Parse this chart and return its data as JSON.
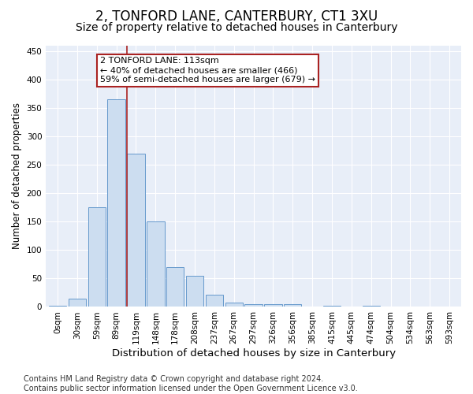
{
  "title1": "2, TONFORD LANE, CANTERBURY, CT1 3XU",
  "title2": "Size of property relative to detached houses in Canterbury",
  "xlabel": "Distribution of detached houses by size in Canterbury",
  "ylabel": "Number of detached properties",
  "bar_labels": [
    "0sqm",
    "30sqm",
    "59sqm",
    "89sqm",
    "119sqm",
    "148sqm",
    "178sqm",
    "208sqm",
    "237sqm",
    "267sqm",
    "297sqm",
    "326sqm",
    "356sqm",
    "385sqm",
    "415sqm",
    "445sqm",
    "474sqm",
    "504sqm",
    "534sqm",
    "563sqm",
    "593sqm"
  ],
  "bar_values": [
    2,
    15,
    175,
    365,
    270,
    150,
    70,
    55,
    22,
    8,
    5,
    5,
    5,
    0,
    2,
    0,
    2,
    0,
    0,
    0,
    0
  ],
  "bar_color": "#ccddf0",
  "bar_edge_color": "#6699cc",
  "vline_x": 3.55,
  "vline_color": "#aa2222",
  "annotation_text": "2 TONFORD LANE: 113sqm\n← 40% of detached houses are smaller (466)\n59% of semi-detached houses are larger (679) →",
  "annotation_box_color": "white",
  "annotation_box_edge_color": "#aa2222",
  "ylim": [
    0,
    460
  ],
  "yticks": [
    0,
    50,
    100,
    150,
    200,
    250,
    300,
    350,
    400,
    450
  ],
  "background_color": "#ffffff",
  "plot_background_color": "#e8eef8",
  "grid_color": "#ffffff",
  "footer_text": "Contains HM Land Registry data © Crown copyright and database right 2024.\nContains public sector information licensed under the Open Government Licence v3.0.",
  "title1_fontsize": 12,
  "title2_fontsize": 10,
  "xlabel_fontsize": 9.5,
  "ylabel_fontsize": 8.5,
  "tick_fontsize": 7.5,
  "footer_fontsize": 7,
  "annotation_fontsize": 8
}
